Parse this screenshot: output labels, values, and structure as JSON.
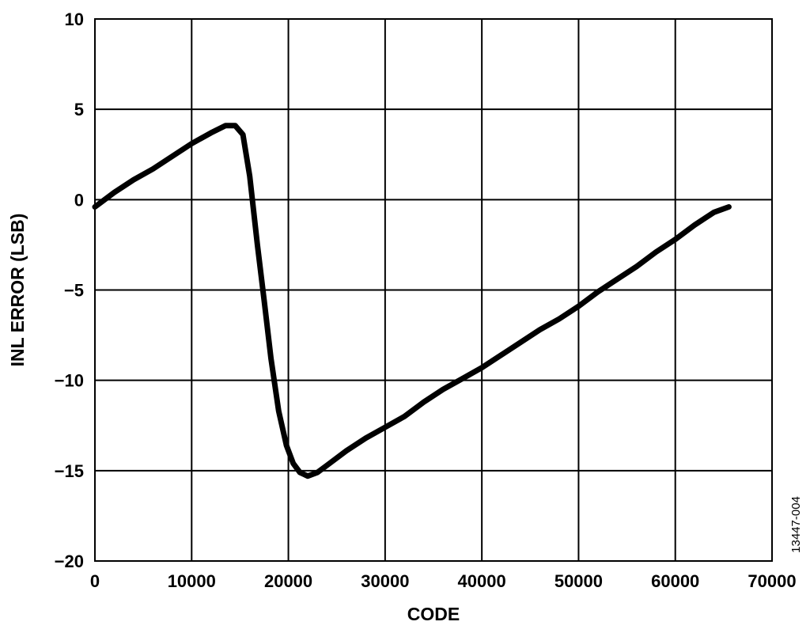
{
  "chart_data": {
    "type": "line",
    "xlabel": "CODE",
    "ylabel": "INL ERROR (LSB)",
    "xlim": [
      0,
      70000
    ],
    "ylim": [
      -20,
      10
    ],
    "x_ticks": [
      0,
      10000,
      20000,
      30000,
      40000,
      50000,
      60000,
      70000
    ],
    "y_ticks": [
      10,
      5,
      0,
      -5,
      -10,
      -15,
      -20
    ],
    "x_tick_labels": [
      "0",
      "10000",
      "20000",
      "30000",
      "40000",
      "50000",
      "60000",
      "70000"
    ],
    "y_tick_labels": [
      "10",
      "5",
      "0",
      "−5",
      "−10",
      "−15",
      "−20"
    ],
    "grid": true,
    "series": [
      {
        "x": [
          0,
          2000,
          4000,
          6000,
          8000,
          10000,
          12000,
          13500,
          14500,
          15300,
          16000,
          16800,
          17500,
          18200,
          19000,
          19800,
          20500,
          21200,
          22000,
          23000,
          24000,
          26000,
          28000,
          30000,
          32000,
          34000,
          36000,
          38000,
          40000,
          42000,
          44000,
          46000,
          48000,
          50000,
          52000,
          54000,
          56000,
          58000,
          60000,
          62000,
          64000,
          65535
        ],
        "y": [
          -0.4,
          0.4,
          1.1,
          1.7,
          2.4,
          3.1,
          3.7,
          4.1,
          4.1,
          3.6,
          1.3,
          -2.5,
          -5.6,
          -8.8,
          -11.7,
          -13.6,
          -14.6,
          -15.1,
          -15.3,
          -15.1,
          -14.7,
          -13.9,
          -13.2,
          -12.6,
          -12.0,
          -11.2,
          -10.5,
          -9.9,
          -9.3,
          -8.6,
          -7.9,
          -7.2,
          -6.6,
          -5.9,
          -5.1,
          -4.4,
          -3.7,
          -2.9,
          -2.2,
          -1.4,
          -0.7,
          -0.4
        ],
        "color": "#000000"
      }
    ]
  },
  "figure_id": "13447-004"
}
